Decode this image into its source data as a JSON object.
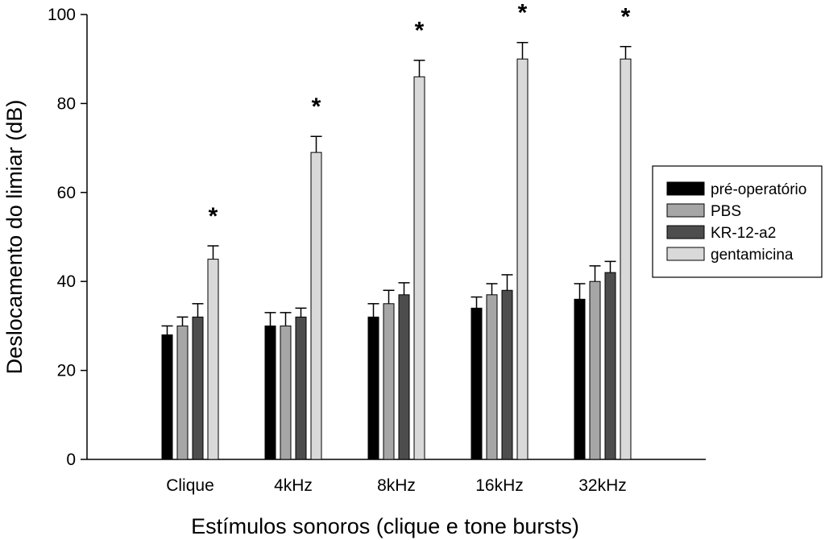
{
  "chart_data": {
    "type": "bar",
    "title": "",
    "xlabel": "Estímulos sonoros (clique e tone bursts)",
    "ylabel": "Deslocamento do limiar (dB)",
    "ylim": [
      0,
      100
    ],
    "yticks": [
      "0",
      "20",
      "40",
      "60",
      "80",
      "100"
    ],
    "categories": [
      "Clique",
      "4kHz",
      "8kHz",
      "16kHz",
      "32kHz"
    ],
    "series": [
      {
        "name": "pré-operatório",
        "color": "#000000",
        "values": [
          28,
          30,
          32,
          34,
          36
        ],
        "errors": [
          2,
          3,
          3,
          2.5,
          3.5
        ]
      },
      {
        "name": "PBS",
        "color": "#a6a6a6",
        "values": [
          30,
          30,
          35,
          37,
          40
        ],
        "errors": [
          2,
          3,
          3,
          2.5,
          3.5
        ]
      },
      {
        "name": "KR-12-a2",
        "color": "#4d4d4d",
        "values": [
          32,
          32,
          37,
          38,
          42
        ],
        "errors": [
          3,
          2,
          2.7,
          3.5,
          2.5
        ]
      },
      {
        "name": "gentamicina",
        "color": "#d9d9d9",
        "values": [
          45,
          69,
          86,
          90,
          90
        ],
        "errors": [
          3,
          3.6,
          3.7,
          3.7,
          2.8
        ]
      }
    ],
    "significance_marks": [
      "*",
      "*",
      "*",
      "*",
      "*"
    ],
    "grid": false,
    "legend_position": "right"
  }
}
